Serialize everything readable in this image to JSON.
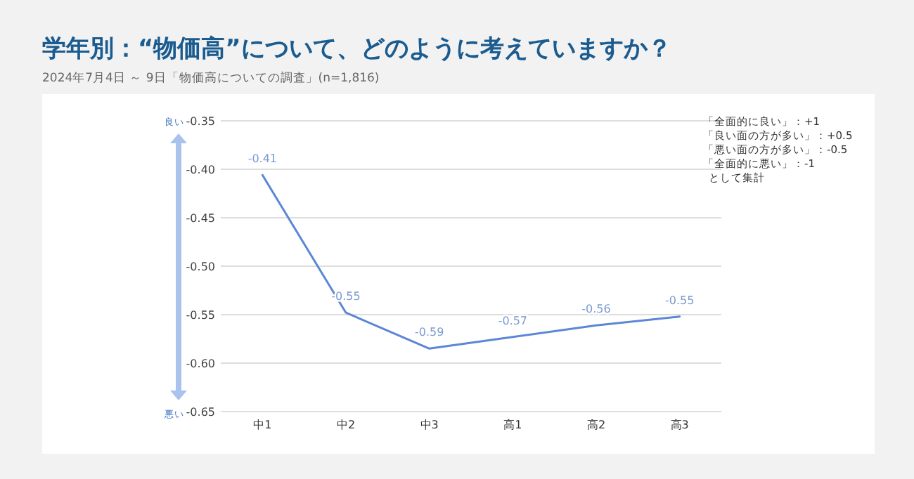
{
  "chart_data": {
    "type": "line",
    "title": "学年別：“物価高”について、どのように考えていますか？",
    "subtitle": "2024年7月4日 ～ 9日「物価高についての調査」(n=1,816)",
    "categories": [
      "中1",
      "中2",
      "中3",
      "高1",
      "高2",
      "高3"
    ],
    "series": [
      {
        "color": "#5b87d6",
        "values": [
          -0.406,
          -0.548,
          -0.585,
          -0.573,
          -0.561,
          -0.552
        ],
        "value_labels": [
          "-0.41",
          "-0.55",
          "-0.59",
          "-0.57",
          "-0.56",
          "-0.55"
        ]
      }
    ],
    "ylim": [
      -0.65,
      -0.35
    ],
    "yticks": [
      -0.65,
      {
        "value": -0.6,
        "label": "-0.60"
      },
      -0.55,
      {
        "value": -0.5,
        "label": "-0.50"
      },
      -0.45,
      {
        "value": -0.4,
        "label": "-0.40"
      },
      -0.35
    ],
    "grid": "y",
    "marker": "none",
    "line_style": "solid",
    "annotations": [
      "良い",
      "悪い",
      "「全面的に良い」：+1",
      "「良い面の方が多い」：+0.5",
      "「悪い面の方が多い」：-0.5",
      "「全面的に悪い」：-1",
      "として集計"
    ]
  }
}
